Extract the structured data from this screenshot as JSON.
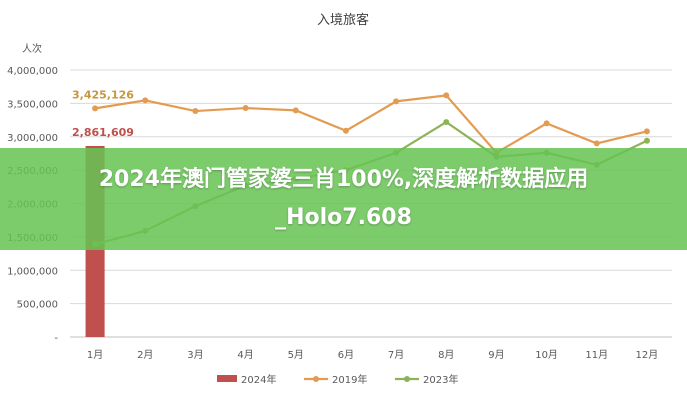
{
  "chart_data": {
    "type": "bar+line",
    "title": "入境旅客",
    "ylabel": "人次",
    "categories": [
      "1月",
      "2月",
      "3月",
      "4月",
      "5月",
      "6月",
      "7月",
      "8月",
      "9月",
      "10月",
      "11月",
      "12月"
    ],
    "ylim": [
      0,
      4000000
    ],
    "yticks": [
      "-",
      "500,000",
      "1,000,000",
      "1,500,000",
      "2,000,000",
      "2,500,000",
      "3,000,000",
      "3,500,000",
      "4,000,000"
    ],
    "grid": true,
    "legend_position": "bottom",
    "series": [
      {
        "name": "2024年",
        "kind": "bar",
        "color": "#c0504d",
        "values": [
          2861609,
          null,
          null,
          null,
          null,
          null,
          null,
          null,
          null,
          null,
          null,
          null
        ]
      },
      {
        "name": "2019年",
        "kind": "line",
        "color": "#e39b52",
        "values": [
          3425126,
          3545000,
          3385000,
          3430000,
          3395000,
          3090000,
          3530000,
          3620000,
          2760000,
          3200000,
          2900000,
          3080000
        ]
      },
      {
        "name": "2023年",
        "kind": "line",
        "color": "#8db356",
        "values": [
          1390000,
          1590000,
          1960000,
          2270000,
          2370000,
          2500000,
          2760000,
          3220000,
          2700000,
          2760000,
          2580000,
          2940000
        ]
      }
    ],
    "annotations": [
      {
        "series": "2019年",
        "index": 0,
        "text": "3,425,126",
        "color": "#c8963e"
      },
      {
        "series": "2024年",
        "index": 0,
        "text": "2,861,609",
        "color": "#c0504d"
      }
    ]
  },
  "banner": {
    "text": "2024年澳门管家婆三肖100%,深度解析数据应用_Holo7.608"
  }
}
